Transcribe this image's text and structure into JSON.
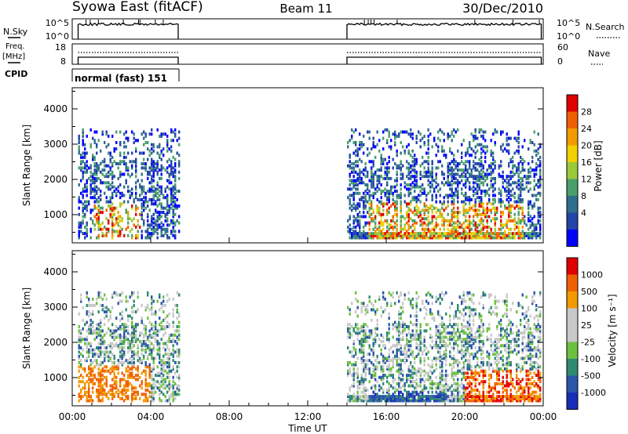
{
  "header": {
    "title": "Syowa East (fitACF)",
    "beam": "Beam 11",
    "date": "30/Dec/2010"
  },
  "aux_panels": {
    "nsky_label": "N.Sky",
    "nsky_ticks": [
      "10^5",
      "10^0"
    ],
    "nsearch_label": "N.Search",
    "nsearch_ticks": [
      "10^5",
      "10^0"
    ],
    "freq_label_1": "Freq.",
    "freq_label_2": "[MHz]",
    "freq_ticks": [
      "18",
      "8"
    ],
    "nave_label": "Nave",
    "nave_ticks": [
      "60",
      "0"
    ],
    "cpid_label": "CPID",
    "cpid_value": "normal (fast) 151"
  },
  "colors": {
    "power": [
      "#0000ff",
      "#2444a8",
      "#2f6e8e",
      "#4a9e6a",
      "#9ac93a",
      "#f0d000",
      "#f29a00",
      "#f06000",
      "#e00000"
    ],
    "velocity": [
      "#e00000",
      "#f06000",
      "#f29a00",
      "#c8c8c8",
      "#c8c8c8",
      "#6cc040",
      "#2f8a70",
      "#2a55a8",
      "#1a2db8"
    ]
  },
  "chart_data": [
    {
      "type": "heatmap",
      "name": "power",
      "xlabel": "",
      "ylabel": "Slant Range [km]",
      "yticks": [
        "1000",
        "2000",
        "3000",
        "4000"
      ],
      "ylim": [
        200,
        4600
      ],
      "xlim_hours": [
        0,
        24
      ],
      "colorbar_label": "Power [dB]",
      "colorbar_ticks": [
        "4",
        "8",
        "12",
        "16",
        "20",
        "24",
        "28"
      ],
      "data_intervals_hours": [
        [
          0.3,
          5.4
        ],
        [
          14.0,
          23.9
        ]
      ]
    },
    {
      "type": "heatmap",
      "name": "velocity",
      "xlabel": "Time UT",
      "ylabel": "Slant Range [km]",
      "yticks": [
        "1000",
        "2000",
        "3000",
        "4000"
      ],
      "ylim": [
        200,
        4600
      ],
      "xlim_hours": [
        0,
        24
      ],
      "xticks": [
        "00:00",
        "04:00",
        "08:00",
        "12:00",
        "16:00",
        "20:00",
        "00:00"
      ],
      "colorbar_label": "Velocity [m s⁻¹]",
      "colorbar_ticks": [
        "1000",
        "500",
        "100",
        "25",
        "-25",
        "-100",
        "-500",
        "-1000"
      ],
      "data_intervals_hours": [
        [
          0.3,
          5.4
        ],
        [
          14.0,
          23.9
        ]
      ]
    }
  ]
}
